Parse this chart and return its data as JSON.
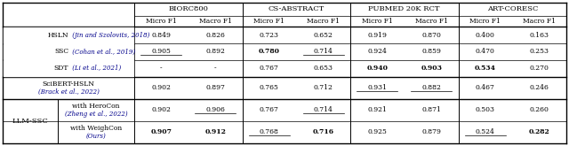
{
  "datasets": [
    "BIORC800",
    "CS-ABSTRACT",
    "PUBMED 20K RCT",
    "ART-CORESC"
  ],
  "rows": [
    {
      "label1": "HSLN",
      "label2": "(Jin and Szolovits, 2018)",
      "values": [
        "0.849",
        "0.826",
        "0.723",
        "0.652",
        "0.919",
        "0.870",
        "0.400",
        "0.163"
      ],
      "bold": [
        false,
        false,
        false,
        false,
        false,
        false,
        false,
        false
      ],
      "underline": [
        false,
        false,
        false,
        false,
        false,
        false,
        false,
        false
      ],
      "tall": false,
      "llm_sub": false
    },
    {
      "label1": "SSC",
      "label2": "(Cohan et al., 2019)",
      "values": [
        "0.905",
        "0.892",
        "0.780",
        "0.714",
        "0.924",
        "0.859",
        "0.470",
        "0.253"
      ],
      "bold": [
        false,
        false,
        true,
        false,
        false,
        false,
        false,
        false
      ],
      "underline": [
        true,
        false,
        false,
        true,
        false,
        false,
        false,
        false
      ],
      "tall": false,
      "llm_sub": false
    },
    {
      "label1": "SDT",
      "label2": "(Li et al., 2021)",
      "values": [
        "-",
        "-",
        "0.767",
        "0.653",
        "0.940",
        "0.903",
        "0.534",
        "0.270"
      ],
      "bold": [
        false,
        false,
        false,
        false,
        true,
        true,
        true,
        false
      ],
      "underline": [
        false,
        false,
        false,
        false,
        false,
        false,
        false,
        false
      ],
      "tall": false,
      "llm_sub": false
    },
    {
      "label1": "SciBERT-HSLN",
      "label2": "(Brack et al., 2022)",
      "values": [
        "0.902",
        "0.897",
        "0.765",
        "0.712",
        "0.931",
        "0.882",
        "0.467",
        "0.246"
      ],
      "bold": [
        false,
        false,
        false,
        false,
        false,
        false,
        false,
        false
      ],
      "underline": [
        false,
        false,
        false,
        false,
        true,
        true,
        false,
        false
      ],
      "tall": true,
      "llm_sub": false
    },
    {
      "label1": "with HeroCon",
      "label2": "(Zheng et al., 2022)",
      "values": [
        "0.902",
        "0.906",
        "0.767",
        "0.714",
        "0.921",
        "0.871",
        "0.503",
        "0.260"
      ],
      "bold": [
        false,
        false,
        false,
        false,
        false,
        false,
        false,
        false
      ],
      "underline": [
        false,
        true,
        false,
        true,
        false,
        false,
        false,
        false
      ],
      "tall": true,
      "llm_sub": true
    },
    {
      "label1": "with WeighCon",
      "label2": "(Ours)",
      "values": [
        "0.907",
        "0.912",
        "0.768",
        "0.716",
        "0.925",
        "0.879",
        "0.524",
        "0.282"
      ],
      "bold": [
        true,
        true,
        false,
        true,
        false,
        false,
        false,
        true
      ],
      "underline": [
        false,
        false,
        true,
        false,
        false,
        false,
        true,
        false
      ],
      "tall": true,
      "llm_sub": true
    }
  ],
  "llm_ssc_label": "LLM-SSC",
  "bg_color": "#ffffff",
  "text_color": "#000000",
  "blue_text_color": "#00008B"
}
